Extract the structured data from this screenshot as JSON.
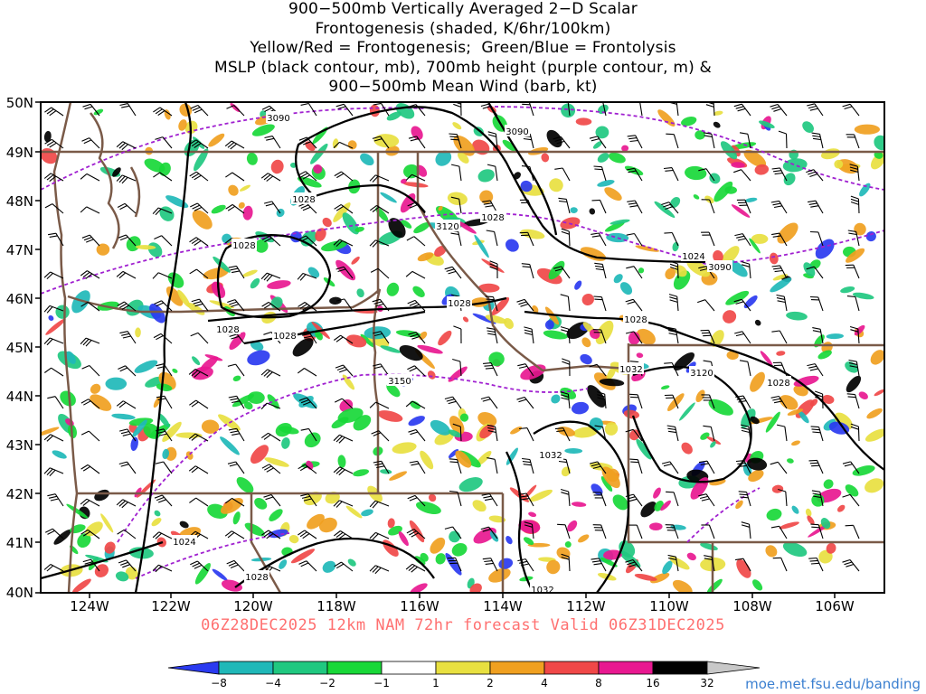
{
  "title_lines": [
    "900−500mb Vertically Averaged 2−D Scalar",
    "Frontogenesis (shaded, K/6hr/100km)",
    "Yellow/Red = Frontogenesis;  Green/Blue = Frontolysis",
    "MSLP (black contour, mb), 700mb height (purple contour, m) &",
    "900−500mb Mean Wind (barb, kt)"
  ],
  "valid_text": "06Z28DEC2025 12km NAM 72hr forecast Valid 06Z31DEC2025",
  "credit": "moe.met.fsu.edu/banding",
  "map": {
    "lat_labels": [
      "50N",
      "49N",
      "48N",
      "47N",
      "46N",
      "45N",
      "44N",
      "43N",
      "42N",
      "41N",
      "40N"
    ],
    "lon_labels": [
      "124W",
      "122W",
      "120W",
      "118W",
      "116W",
      "114W",
      "112W",
      "110W",
      "108W",
      "106W"
    ],
    "mslp_labels": [
      "1028",
      "1028",
      "1028",
      "1028",
      "1028",
      "1028",
      "1028",
      "1024",
      "1024",
      "1032",
      "1032",
      "1028",
      "1032",
      "1028"
    ],
    "height_labels": [
      "3090",
      "3090",
      "3090",
      "3120",
      "3150",
      "3120"
    ],
    "colors": {
      "border": "#7a5a48",
      "mslp": "#000000",
      "height": "#a020d0"
    }
  },
  "colorbar": {
    "labels": [
      "−8",
      "−4",
      "−2",
      "−1",
      "1",
      "2",
      "4",
      "8",
      "16",
      "32"
    ],
    "colors": [
      "#2a3af0",
      "#20b8b8",
      "#20c880",
      "#18d838",
      "#ffffff",
      "#e8e040",
      "#f0a020",
      "#f04848",
      "#e81890",
      "#000000"
    ]
  }
}
